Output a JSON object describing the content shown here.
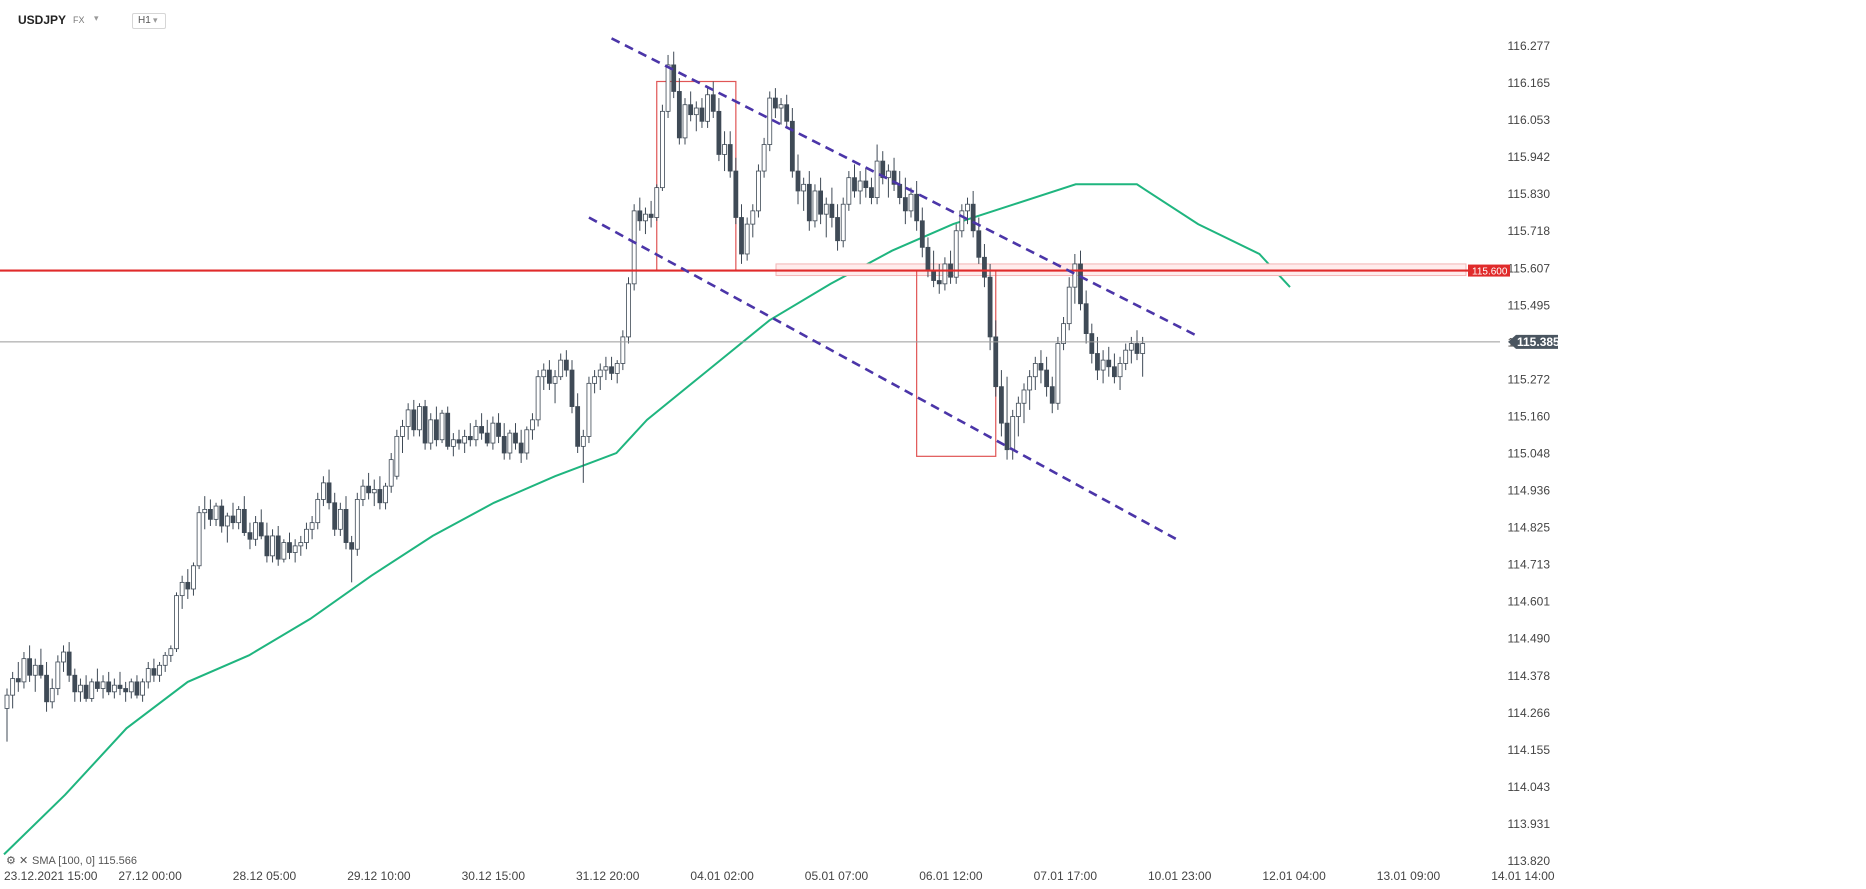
{
  "header": {
    "symbol": "USDJPY",
    "market": "FX",
    "timeframe": "H1",
    "dropdown_glyph": "▾"
  },
  "indicator": {
    "label": "SMA [100, 0] 115.566",
    "icons": [
      "settings-icon",
      "close-icon"
    ]
  },
  "price_tags": {
    "current": "115.385",
    "level": "115.600"
  },
  "colors": {
    "up": "#ffffff",
    "down": "#3f4a56",
    "sma": "#1fb57f",
    "level_line": "#e02b2b",
    "channel": "#4b35a8",
    "box": "#e05555",
    "current_line": "#9a9a9a",
    "current_tag": "#4a5560"
  },
  "chart_data": {
    "type": "candlestick",
    "instrument": "USDJPY",
    "timeframe": "H1",
    "y_ticks": [
      "116.277",
      "116.165",
      "116.053",
      "115.942",
      "115.830",
      "115.718",
      "115.607",
      "115.495",
      "115.385",
      "115.272",
      "115.160",
      "115.048",
      "114.936",
      "114.825",
      "114.713",
      "114.601",
      "114.490",
      "114.378",
      "114.266",
      "114.155",
      "114.043",
      "113.931",
      "113.820"
    ],
    "ylim": [
      113.82,
      116.277
    ],
    "x_ticks": [
      "23.12.2021  15:00",
      "27.12  00:00",
      "28.12  05:00",
      "29.12  10:00",
      "30.12  15:00",
      "31.12  20:00",
      "04.01  02:00",
      "05.01  07:00",
      "06.01  12:00",
      "07.01  17:00",
      "10.01  23:00",
      "12.01  04:00",
      "13.01  09:00",
      "14.01  14:00"
    ],
    "bar_count": 226,
    "current_price": 115.385,
    "horizontal_level": 115.6,
    "sma": {
      "name": "SMA [100, 0]",
      "last": 115.566,
      "points": [
        [
          0,
          113.84
        ],
        [
          20,
          114.02
        ],
        [
          40,
          114.22
        ],
        [
          60,
          114.36
        ],
        [
          80,
          114.44
        ],
        [
          100,
          114.55
        ],
        [
          120,
          114.68
        ],
        [
          140,
          114.8
        ],
        [
          160,
          114.9
        ],
        [
          180,
          114.98
        ],
        [
          200,
          115.05
        ],
        [
          210,
          115.15
        ],
        [
          230,
          115.3
        ],
        [
          250,
          115.45
        ],
        [
          270,
          115.56
        ],
        [
          290,
          115.66
        ],
        [
          310,
          115.74
        ],
        [
          330,
          115.8
        ],
        [
          350,
          115.86
        ],
        [
          370,
          115.86
        ],
        [
          390,
          115.74
        ],
        [
          410,
          115.65
        ],
        [
          420,
          115.55
        ]
      ]
    },
    "candles": [
      [
        114.28,
        114.34,
        114.18,
        114.32
      ],
      [
        114.32,
        114.39,
        114.28,
        114.37
      ],
      [
        114.37,
        114.42,
        114.33,
        114.36
      ],
      [
        114.36,
        114.45,
        114.34,
        114.43
      ],
      [
        114.43,
        114.47,
        114.36,
        114.38
      ],
      [
        114.38,
        114.43,
        114.33,
        114.41
      ],
      [
        114.41,
        114.46,
        114.37,
        114.38
      ],
      [
        114.38,
        114.42,
        114.27,
        114.3
      ],
      [
        114.3,
        114.37,
        114.28,
        114.34
      ],
      [
        114.34,
        114.44,
        114.32,
        114.42
      ],
      [
        114.42,
        114.47,
        114.39,
        114.45
      ],
      [
        114.45,
        114.48,
        114.36,
        114.38
      ],
      [
        114.38,
        114.4,
        114.3,
        114.33
      ],
      [
        114.33,
        114.37,
        114.3,
        114.35
      ],
      [
        114.35,
        114.38,
        114.3,
        114.31
      ],
      [
        114.31,
        114.37,
        114.3,
        114.36
      ],
      [
        114.36,
        114.4,
        114.33,
        114.34
      ],
      [
        114.34,
        114.38,
        114.31,
        114.36
      ],
      [
        114.36,
        114.39,
        114.32,
        114.33
      ],
      [
        114.33,
        114.37,
        114.31,
        114.35
      ],
      [
        114.35,
        114.39,
        114.32,
        114.34
      ],
      [
        114.34,
        114.36,
        114.3,
        114.33
      ],
      [
        114.33,
        114.37,
        114.31,
        114.36
      ],
      [
        114.36,
        114.38,
        114.31,
        114.32
      ],
      [
        114.32,
        114.37,
        114.3,
        114.36
      ],
      [
        114.36,
        114.42,
        114.34,
        114.4
      ],
      [
        114.4,
        114.43,
        114.36,
        114.38
      ],
      [
        114.38,
        114.42,
        114.36,
        114.41
      ],
      [
        114.41,
        114.45,
        114.39,
        114.44
      ],
      [
        114.44,
        114.47,
        114.42,
        114.46
      ],
      [
        114.46,
        114.63,
        114.45,
        114.62
      ],
      [
        114.62,
        114.68,
        114.58,
        114.66
      ],
      [
        114.66,
        114.7,
        114.61,
        114.64
      ],
      [
        114.64,
        114.72,
        114.62,
        114.71
      ],
      [
        114.71,
        114.89,
        114.7,
        114.87
      ],
      [
        114.87,
        114.92,
        114.82,
        114.88
      ],
      [
        114.88,
        114.91,
        114.83,
        114.85
      ],
      [
        114.85,
        114.9,
        114.83,
        114.89
      ],
      [
        114.89,
        114.91,
        114.81,
        114.83
      ],
      [
        114.83,
        114.87,
        114.78,
        114.86
      ],
      [
        114.86,
        114.9,
        114.82,
        114.84
      ],
      [
        114.84,
        114.89,
        114.82,
        114.88
      ],
      [
        114.88,
        114.92,
        114.8,
        114.81
      ],
      [
        114.81,
        114.84,
        114.76,
        114.79
      ],
      [
        114.79,
        114.86,
        114.77,
        114.84
      ],
      [
        114.84,
        114.88,
        114.79,
        114.8
      ],
      [
        114.8,
        114.84,
        114.72,
        114.74
      ],
      [
        114.74,
        114.82,
        114.72,
        114.8
      ],
      [
        114.8,
        114.83,
        114.71,
        114.73
      ],
      [
        114.73,
        114.79,
        114.72,
        114.78
      ],
      [
        114.78,
        114.81,
        114.73,
        114.75
      ],
      [
        114.75,
        114.79,
        114.72,
        114.77
      ],
      [
        114.77,
        114.8,
        114.74,
        114.78
      ],
      [
        114.78,
        114.84,
        114.76,
        114.82
      ],
      [
        114.82,
        114.86,
        114.79,
        114.84
      ],
      [
        114.84,
        114.93,
        114.82,
        114.91
      ],
      [
        114.91,
        114.98,
        114.89,
        114.96
      ],
      [
        114.96,
        115.0,
        114.88,
        114.9
      ],
      [
        114.9,
        114.93,
        114.8,
        114.82
      ],
      [
        114.82,
        114.9,
        114.8,
        114.88
      ],
      [
        114.88,
        114.92,
        114.76,
        114.78
      ],
      [
        114.78,
        114.8,
        114.66,
        114.76
      ],
      [
        114.76,
        114.93,
        114.74,
        114.91
      ],
      [
        114.91,
        114.97,
        114.89,
        114.95
      ],
      [
        114.95,
        114.99,
        114.91,
        114.93
      ],
      [
        114.93,
        114.97,
        114.89,
        114.94
      ],
      [
        114.94,
        114.98,
        114.88,
        114.9
      ],
      [
        114.9,
        114.96,
        114.88,
        114.95
      ],
      [
        114.95,
        115.05,
        114.93,
        115.03
      ],
      [
        114.98,
        115.12,
        114.97,
        115.1
      ],
      [
        115.1,
        115.15,
        115.05,
        115.13
      ],
      [
        115.13,
        115.2,
        115.09,
        115.18
      ],
      [
        115.18,
        115.21,
        115.1,
        115.12
      ],
      [
        115.12,
        115.2,
        115.1,
        115.19
      ],
      [
        115.19,
        115.21,
        115.06,
        115.08
      ],
      [
        115.08,
        115.17,
        115.06,
        115.15
      ],
      [
        115.15,
        115.19,
        115.07,
        115.09
      ],
      [
        115.09,
        115.18,
        115.08,
        115.17
      ],
      [
        115.17,
        115.19,
        115.06,
        115.07
      ],
      [
        115.07,
        115.11,
        115.04,
        115.09
      ],
      [
        115.09,
        115.12,
        115.06,
        115.08
      ],
      [
        115.08,
        115.12,
        115.05,
        115.1
      ],
      [
        115.1,
        115.14,
        115.07,
        115.09
      ],
      [
        115.09,
        115.15,
        115.07,
        115.13
      ],
      [
        115.13,
        115.17,
        115.09,
        115.11
      ],
      [
        115.11,
        115.15,
        115.07,
        115.08
      ],
      [
        115.08,
        115.16,
        115.06,
        115.14
      ],
      [
        115.14,
        115.17,
        115.08,
        115.1
      ],
      [
        115.1,
        115.14,
        115.03,
        115.05
      ],
      [
        115.05,
        115.12,
        115.03,
        115.11
      ],
      [
        115.11,
        115.14,
        115.06,
        115.08
      ],
      [
        115.08,
        115.12,
        115.02,
        115.05
      ],
      [
        115.05,
        115.13,
        115.03,
        115.12
      ],
      [
        115.12,
        115.17,
        115.09,
        115.15
      ],
      [
        115.15,
        115.3,
        115.13,
        115.28
      ],
      [
        115.28,
        115.32,
        115.24,
        115.3
      ],
      [
        115.3,
        115.33,
        115.24,
        115.26
      ],
      [
        115.26,
        115.3,
        115.2,
        115.28
      ],
      [
        115.28,
        115.35,
        115.27,
        115.33
      ],
      [
        115.33,
        115.36,
        115.28,
        115.3
      ],
      [
        115.3,
        115.33,
        115.17,
        115.19
      ],
      [
        115.19,
        115.23,
        115.05,
        115.07
      ],
      [
        115.07,
        115.12,
        114.96,
        115.1
      ],
      [
        115.1,
        115.28,
        115.08,
        115.26
      ],
      [
        115.26,
        115.3,
        115.23,
        115.28
      ],
      [
        115.28,
        115.32,
        115.24,
        115.3
      ],
      [
        115.3,
        115.34,
        115.27,
        115.31
      ],
      [
        115.31,
        115.34,
        115.27,
        115.29
      ],
      [
        115.29,
        115.33,
        115.26,
        115.32
      ],
      [
        115.32,
        115.42,
        115.3,
        115.4
      ],
      [
        115.4,
        115.58,
        115.38,
        115.56
      ],
      [
        115.56,
        115.8,
        115.54,
        115.78
      ],
      [
        115.78,
        115.82,
        115.72,
        115.75
      ],
      [
        115.75,
        115.79,
        115.71,
        115.77
      ],
      [
        115.77,
        115.81,
        115.73,
        115.76
      ],
      [
        115.76,
        115.86,
        115.75,
        115.85
      ],
      [
        115.85,
        116.1,
        115.84,
        116.08
      ],
      [
        116.08,
        116.25,
        116.06,
        116.22
      ],
      [
        116.22,
        116.26,
        116.12,
        116.14
      ],
      [
        116.14,
        116.18,
        115.98,
        116.0
      ],
      [
        116.0,
        116.12,
        115.98,
        116.1
      ],
      [
        116.1,
        116.14,
        116.05,
        116.07
      ],
      [
        116.07,
        116.11,
        116.02,
        116.09
      ],
      [
        116.09,
        116.12,
        116.03,
        116.05
      ],
      [
        116.05,
        116.15,
        116.03,
        116.13
      ],
      [
        116.13,
        116.17,
        116.06,
        116.08
      ],
      [
        116.08,
        116.12,
        115.93,
        115.95
      ],
      [
        115.95,
        116.02,
        115.9,
        115.98
      ],
      [
        115.98,
        116.02,
        115.88,
        115.9
      ],
      [
        115.9,
        115.94,
        115.74,
        115.76
      ],
      [
        115.76,
        115.8,
        115.62,
        115.65
      ],
      [
        115.65,
        115.76,
        115.63,
        115.74
      ],
      [
        115.74,
        115.8,
        115.7,
        115.78
      ],
      [
        115.78,
        115.92,
        115.76,
        115.9
      ],
      [
        115.9,
        116.0,
        115.88,
        115.98
      ],
      [
        115.98,
        116.14,
        115.96,
        116.12
      ],
      [
        116.12,
        116.15,
        116.06,
        116.09
      ],
      [
        116.09,
        116.12,
        116.04,
        116.1
      ],
      [
        116.1,
        116.13,
        116.03,
        116.05
      ],
      [
        116.05,
        116.09,
        115.88,
        115.9
      ],
      [
        115.9,
        115.95,
        115.8,
        115.84
      ],
      [
        115.84,
        115.88,
        115.78,
        115.86
      ],
      [
        115.86,
        115.9,
        115.72,
        115.75
      ],
      [
        115.75,
        115.86,
        115.73,
        115.84
      ],
      [
        115.84,
        115.88,
        115.74,
        115.77
      ],
      [
        115.77,
        115.82,
        115.7,
        115.8
      ],
      [
        115.8,
        115.85,
        115.73,
        115.76
      ],
      [
        115.76,
        115.8,
        115.66,
        115.69
      ],
      [
        115.69,
        115.82,
        115.67,
        115.8
      ],
      [
        115.8,
        115.9,
        115.78,
        115.88
      ],
      [
        115.88,
        115.92,
        115.82,
        115.84
      ],
      [
        115.84,
        115.9,
        115.8,
        115.87
      ],
      [
        115.87,
        115.91,
        115.82,
        115.85
      ],
      [
        115.85,
        115.88,
        115.8,
        115.82
      ],
      [
        115.82,
        115.98,
        115.8,
        115.93
      ],
      [
        115.93,
        115.96,
        115.86,
        115.88
      ],
      [
        115.88,
        115.92,
        115.82,
        115.9
      ],
      [
        115.9,
        115.94,
        115.84,
        115.86
      ],
      [
        115.86,
        115.9,
        115.8,
        115.82
      ],
      [
        115.82,
        115.88,
        115.74,
        115.78
      ],
      [
        115.78,
        115.85,
        115.76,
        115.83
      ],
      [
        115.83,
        115.87,
        115.72,
        115.75
      ],
      [
        115.75,
        115.79,
        115.64,
        115.67
      ],
      [
        115.67,
        115.7,
        115.58,
        115.6
      ],
      [
        115.6,
        115.66,
        115.55,
        115.57
      ],
      [
        115.57,
        115.62,
        115.53,
        115.56
      ],
      [
        115.56,
        115.64,
        115.54,
        115.62
      ],
      [
        115.62,
        115.66,
        115.56,
        115.58
      ],
      [
        115.58,
        115.74,
        115.56,
        115.72
      ],
      [
        115.72,
        115.8,
        115.7,
        115.78
      ],
      [
        115.78,
        115.82,
        115.74,
        115.8
      ],
      [
        115.8,
        115.84,
        115.7,
        115.72
      ],
      [
        115.72,
        115.76,
        115.62,
        115.64
      ],
      [
        115.64,
        115.68,
        115.55,
        115.58
      ],
      [
        115.58,
        115.62,
        115.36,
        115.4
      ],
      [
        115.4,
        115.45,
        115.22,
        115.25
      ],
      [
        115.25,
        115.3,
        115.1,
        115.14
      ],
      [
        115.14,
        115.28,
        115.03,
        115.06
      ],
      [
        115.06,
        115.18,
        115.03,
        115.16
      ],
      [
        115.16,
        115.22,
        115.1,
        115.2
      ],
      [
        115.2,
        115.26,
        115.14,
        115.24
      ],
      [
        115.24,
        115.3,
        115.18,
        115.28
      ],
      [
        115.28,
        115.34,
        115.24,
        115.32
      ],
      [
        115.32,
        115.36,
        115.26,
        115.3
      ],
      [
        115.3,
        115.34,
        115.22,
        115.25
      ],
      [
        115.25,
        115.28,
        115.17,
        115.2
      ],
      [
        115.2,
        115.4,
        115.18,
        115.38
      ],
      [
        115.38,
        115.46,
        115.36,
        115.44
      ],
      [
        115.44,
        115.58,
        115.42,
        115.55
      ],
      [
        115.55,
        115.65,
        115.5,
        115.62
      ],
      [
        115.62,
        115.66,
        115.48,
        115.5
      ],
      [
        115.5,
        115.54,
        115.38,
        115.41
      ],
      [
        115.41,
        115.44,
        115.32,
        115.35
      ],
      [
        115.35,
        115.4,
        115.27,
        115.3
      ],
      [
        115.3,
        115.36,
        115.26,
        115.33
      ],
      [
        115.33,
        115.37,
        115.28,
        115.31
      ],
      [
        115.31,
        115.35,
        115.26,
        115.28
      ],
      [
        115.28,
        115.34,
        115.24,
        115.32
      ],
      [
        115.32,
        115.38,
        115.3,
        115.36
      ],
      [
        115.36,
        115.4,
        115.32,
        115.38
      ],
      [
        115.38,
        115.42,
        115.33,
        115.35
      ],
      [
        115.35,
        115.4,
        115.28,
        115.38
      ]
    ],
    "trend_lines": [
      {
        "name": "channel-upper",
        "from": [
          107,
          116.3
        ],
        "to": [
          211,
          115.4
        ]
      },
      {
        "name": "channel-lower",
        "from": [
          103,
          115.76
        ],
        "to": [
          207,
          114.79
        ]
      }
    ],
    "horizontal_line": 115.6,
    "boxes": [
      {
        "name": "highlight-box-left",
        "x": [
          115,
          129
        ],
        "y": [
          115.6,
          116.17
        ]
      },
      {
        "name": "highlight-box-right",
        "x": [
          161,
          175
        ],
        "y": [
          115.04,
          115.6
        ]
      }
    ]
  }
}
